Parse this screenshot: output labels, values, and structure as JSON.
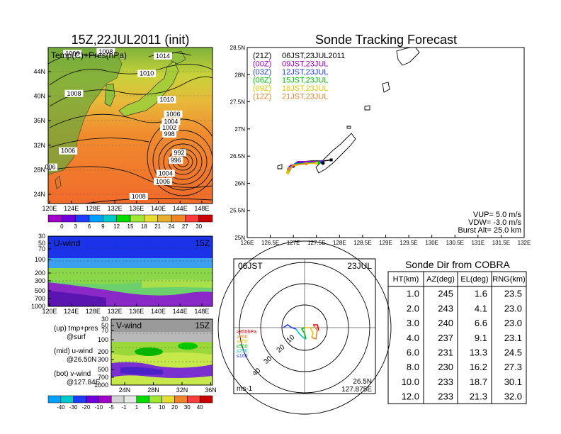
{
  "left_title": "15Z,22JUL2011 (init)",
  "right_title": "Sonde Tracking Forecast",
  "map_panel": {
    "label": "Temp(C)+Pres(hPa)",
    "y_ticks": [
      "44N",
      "40N",
      "36N",
      "32N",
      "28N",
      "24N"
    ],
    "x_ticks": [
      "120E",
      "124E",
      "128E",
      "132E",
      "136E",
      "140E",
      "144E",
      "148E"
    ],
    "pressure_labels": [
      {
        "text": "1006",
        "lon": 124.0,
        "lat": 45.2
      },
      {
        "text": "1008",
        "lon": 130.2,
        "lat": 45.5
      },
      {
        "text": "1014",
        "lon": 140.8,
        "lat": 44.8
      },
      {
        "text": "1010",
        "lon": 137.8,
        "lat": 42.0
      },
      {
        "text": "1008",
        "lon": 124.3,
        "lat": 38.8
      },
      {
        "text": "1010",
        "lon": 141.5,
        "lat": 37.8
      },
      {
        "text": "1006",
        "lon": 142.7,
        "lat": 35.5
      },
      {
        "text": "1004",
        "lon": 142.3,
        "lat": 34.3
      },
      {
        "text": "1002",
        "lon": 142.0,
        "lat": 33.3
      },
      {
        "text": "998",
        "lon": 142.0,
        "lat": 32.3
      },
      {
        "text": "1006",
        "lon": 123.2,
        "lat": 29.6
      },
      {
        "text": "992",
        "lon": 143.8,
        "lat": 29.3
      },
      {
        "text": "996",
        "lon": 143.2,
        "lat": 28.1
      },
      {
        "text": "006",
        "lon": 119.9,
        "lat": 27.0
      },
      {
        "text": "1004",
        "lon": 141.3,
        "lat": 26.0
      },
      {
        "text": "1006",
        "lon": 140.8,
        "lat": 24.7
      },
      {
        "text": "1008",
        "lon": 136.3,
        "lat": 22.3
      }
    ],
    "colorbar": {
      "labels": [
        "0",
        "3",
        "6",
        "9",
        "12",
        "15",
        "18",
        "21",
        "24",
        "27",
        "30"
      ],
      "colors": [
        "#a000c8",
        "#6e00dc",
        "#1e3cff",
        "#00a0ff",
        "#00c8c8",
        "#00dc00",
        "#a0e632",
        "#e6dc32",
        "#e6af2d",
        "#f08228",
        "#fa3c3c",
        "#c80000"
      ]
    }
  },
  "u_wind": {
    "label": "U-wind",
    "time": "15Z",
    "y_ticks": [
      "30",
      "50",
      "70",
      "100",
      "200",
      "300",
      "500",
      "700",
      "1000"
    ],
    "x_ticks": [
      "120E",
      "124E",
      "128E",
      "132E",
      "136E",
      "140E",
      "144E",
      "148E"
    ]
  },
  "v_wind": {
    "label": "V-wind",
    "time": "15Z",
    "y_ticks": [
      "30",
      "50",
      "70",
      "100",
      "200",
      "300",
      "500",
      "700",
      "1000"
    ],
    "x_ticks": [
      "24N",
      "28N",
      "32N",
      "36N"
    ],
    "colorbar": {
      "labels": [
        "-40",
        "-30",
        "-20",
        "-10",
        "-5",
        "-1",
        "1",
        "5",
        "10",
        "20",
        "30",
        "40"
      ],
      "colors": [
        "#00a0ff",
        "#00c8c8",
        "#1e3cff",
        "#6e00dc",
        "#a000c8",
        "#d2d2d2",
        "#e6e6e6",
        "#00dc00",
        "#a0e632",
        "#e6dc32",
        "#f08228",
        "#fa3c3c",
        "#c80000"
      ]
    }
  },
  "notes": [
    {
      "line1": "(up) tmp+pres",
      "line2": "@surf"
    },
    {
      "line1": "(mid) u-wind",
      "line2": "@26.50N"
    },
    {
      "line1": "(bot) v-wind",
      "line2": "@127.84E"
    }
  ],
  "track_panel": {
    "y_ticks": [
      "28.5N",
      "28N",
      "27.5N",
      "27N",
      "26.5N",
      "26N",
      "25.5N",
      "25N"
    ],
    "x_ticks": [
      "126E",
      "126.5E",
      "127E",
      "127.5E",
      "128E",
      "128.5E",
      "129E",
      "129.5E",
      "130E",
      "130.5E",
      "131E",
      "131.5E",
      "132E"
    ],
    "legend": [
      {
        "code": "(21Z)",
        "time": "06JST,23JUL2011",
        "color": "#000000"
      },
      {
        "code": "(00Z)",
        "time": "09JST,23JUL",
        "color": "#a000c8"
      },
      {
        "code": "(03Z)",
        "time": "12JST,23JUL",
        "color": "#1e3cff"
      },
      {
        "code": "(06Z)",
        "time": "15JST,23JUL",
        "color": "#00c800"
      },
      {
        "code": "(09Z)",
        "time": "18JST,23JUL",
        "color": "#e6c800"
      },
      {
        "code": "(12Z)",
        "time": "21JST,23JUL",
        "color": "#f08228"
      }
    ],
    "params": [
      "VUP=  5.0  m/s",
      "VDW=  -3.0  m/s",
      "Burst Alt=  25.0  km"
    ]
  },
  "polar_panel": {
    "time_label": "06JST",
    "date_label": "23JUL",
    "ring_labels": [
      "10",
      "20",
      "30",
      "40"
    ],
    "unit": "ms-1",
    "location_lat": "26.5N",
    "location_lon": "127.875E",
    "level_legend": [
      {
        "text": "≥850hPa",
        "color": "#e60000"
      },
      {
        "text": "≥850",
        "color": "#f08228"
      },
      {
        "text": "≤850",
        "color": "#e6c800"
      },
      {
        "text": "≤500",
        "color": "#00c800"
      },
      {
        "text": "≤250",
        "color": "#00c8c8"
      },
      {
        "text": "≤100",
        "color": "#1e3cff"
      }
    ]
  },
  "sonde_table": {
    "title": "Sonde Dir from COBRA",
    "headers": [
      "HT(km)",
      "AZ(deg)",
      "EL(deg)",
      "RNG(km)"
    ],
    "rows": [
      [
        "1.0",
        "245",
        "1.6",
        "23.5"
      ],
      [
        "2.0",
        "243",
        "4.1",
        "23.0"
      ],
      [
        "3.0",
        "240",
        "6.6",
        "23.0"
      ],
      [
        "4.0",
        "237",
        "9.1",
        "23.1"
      ],
      [
        "6.0",
        "231",
        "13.3",
        "24.5"
      ],
      [
        "8.0",
        "230",
        "16.2",
        "27.3"
      ],
      [
        "10.0",
        "233",
        "18.7",
        "30.1"
      ],
      [
        "12.0",
        "233",
        "21.3",
        "32.0"
      ]
    ]
  },
  "chart_data": [
    {
      "type": "line",
      "title": "Sonde Tracking Forecast",
      "xlim": [
        126,
        132
      ],
      "ylim": [
        25,
        28.5
      ],
      "series": [
        {
          "name": "(21Z) 06JST,23JUL2011",
          "points": [
            [
              127.0,
              26.32
            ],
            [
              127.1,
              26.39
            ],
            [
              127.4,
              26.41
            ],
            [
              127.65,
              26.41
            ],
            [
              127.82,
              26.43
            ]
          ]
        },
        {
          "name": "(00Z) 09JST,23JUL",
          "points": [
            [
              126.95,
              26.31
            ],
            [
              127.1,
              26.4
            ],
            [
              127.4,
              26.4
            ],
            [
              127.62,
              26.4
            ]
          ]
        },
        {
          "name": "(03Z) 12JST,23JUL",
          "points": [
            [
              126.92,
              26.28
            ],
            [
              127.05,
              26.37
            ],
            [
              127.35,
              26.38
            ],
            [
              127.6,
              26.39
            ]
          ]
        },
        {
          "name": "(06Z) 15JST,23JUL",
          "points": [
            [
              126.9,
              26.24
            ],
            [
              127.02,
              26.35
            ],
            [
              127.3,
              26.37
            ],
            [
              127.55,
              26.38
            ]
          ]
        },
        {
          "name": "(09Z) 18JST,23JUL",
          "points": [
            [
              126.88,
              26.2
            ],
            [
              126.98,
              26.32
            ],
            [
              127.25,
              26.36
            ],
            [
              127.5,
              26.37
            ]
          ]
        },
        {
          "name": "(12Z) 21JST,23JUL",
          "points": [
            [
              126.9,
              26.26
            ],
            [
              127.0,
              26.34
            ],
            [
              127.28,
              26.36
            ]
          ]
        }
      ]
    },
    {
      "type": "table",
      "title": "Sonde Dir from COBRA",
      "columns": [
        "HT(km)",
        "AZ(deg)",
        "EL(deg)",
        "RNG(km)"
      ]
    }
  ]
}
